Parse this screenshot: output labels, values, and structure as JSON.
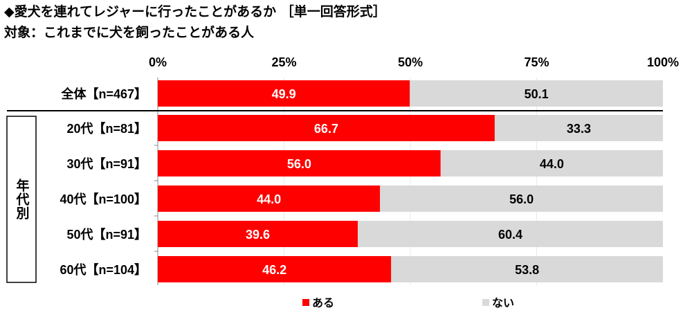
{
  "title": "◆愛犬を連れてレジャーに行ったことがあるか ［単一回答形式］",
  "subtitle": "対象：これまでに犬を飼ったことがある人",
  "chart_data": {
    "type": "bar",
    "stacked": true,
    "orientation": "horizontal",
    "categories": [
      "全体【n=467】",
      "20代【n=81】",
      "30代【n=91】",
      "40代【n=100】",
      "50代【n=91】",
      "60代【n=104】"
    ],
    "group_label": "年代別",
    "series": [
      {
        "name": "ある",
        "color": "#ff0000",
        "values": [
          49.9,
          66.7,
          56.0,
          44.0,
          39.6,
          46.2
        ]
      },
      {
        "name": "ない",
        "color": "#d9d9d9",
        "values": [
          50.1,
          33.3,
          44.0,
          56.0,
          60.4,
          53.8
        ]
      }
    ],
    "xticks": [
      "0%",
      "25%",
      "50%",
      "75%",
      "100%"
    ],
    "xlim": [
      0,
      100
    ],
    "legend": "bottom"
  }
}
